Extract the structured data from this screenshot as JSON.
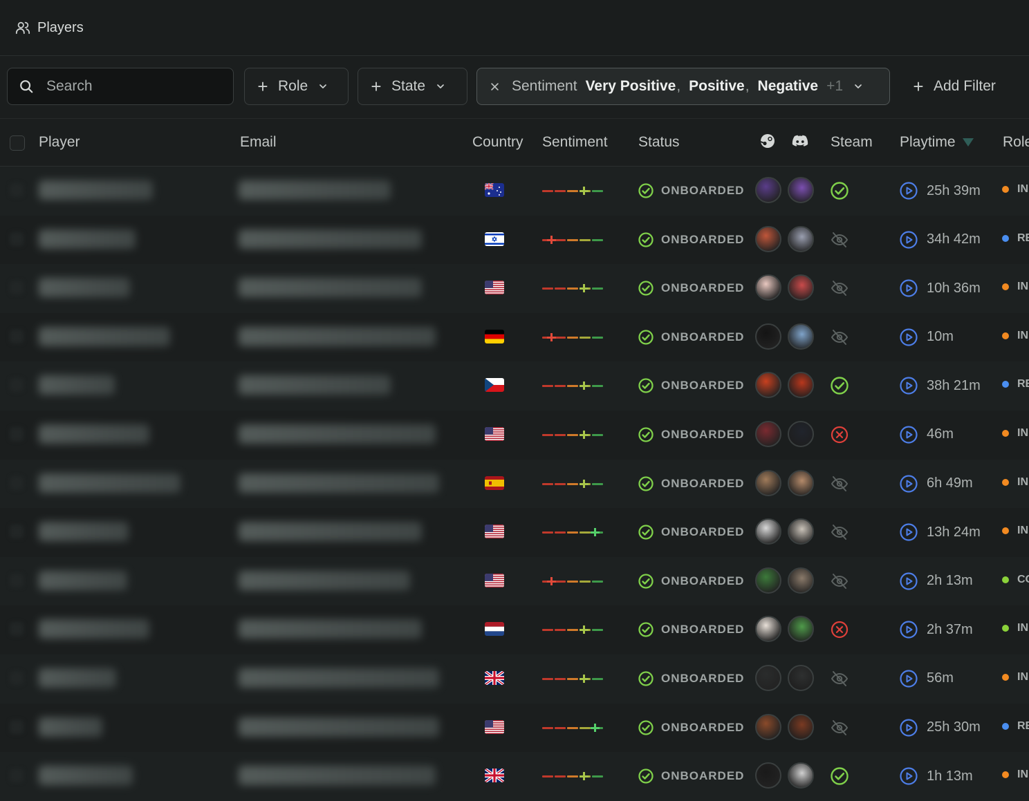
{
  "app": {
    "title": "Players"
  },
  "filters": {
    "search_placeholder": "Search",
    "role_label": "Role",
    "state_label": "State",
    "sentiment_key": "Sentiment",
    "sentiment_values": [
      "Very Positive",
      "Positive",
      "Negative"
    ],
    "sentiment_more": "+1",
    "add_filter_label": "Add Filter"
  },
  "columns": {
    "player": "Player",
    "email": "Email",
    "country": "Country",
    "sentiment": "Sentiment",
    "status": "Status",
    "steam": "Steam",
    "playtime": "Playtime",
    "role": "Role"
  },
  "colors": {
    "onboarded_green": "#7fd04a",
    "play_blue": "#4d7ee8",
    "error_red": "#e0403a",
    "role_orange": "#f28a21",
    "role_blue": "#4a8ef0",
    "role_green": "#8bd23a"
  },
  "rows": [
    {
      "country": "au",
      "sentiment": 4,
      "status": "ONBOARDED",
      "steam": "linked",
      "playtime": "25h 39m",
      "role": "IN",
      "role_color": "orange",
      "av": [
        "#5a3d8a",
        "#7b4fb0"
      ]
    },
    {
      "country": "il",
      "sentiment": 1,
      "status": "ONBOARDED",
      "steam": "hidden",
      "playtime": "34h 42m",
      "role": "RE",
      "role_color": "blue",
      "av": [
        "#c0563a",
        "#9a9fb0"
      ]
    },
    {
      "country": "us",
      "sentiment": 4,
      "status": "ONBOARDED",
      "steam": "hidden",
      "playtime": "10h 36m",
      "role": "IN",
      "role_color": "orange",
      "av": [
        "#e9c8c0",
        "#c94b4b"
      ]
    },
    {
      "country": "de",
      "sentiment": 1,
      "status": "ONBOARDED",
      "steam": "hidden",
      "playtime": "10m",
      "role": "IN",
      "role_color": "orange",
      "av": [
        "#141414",
        "#7fa3c9"
      ]
    },
    {
      "country": "cz",
      "sentiment": 4,
      "status": "ONBOARDED",
      "steam": "linked",
      "playtime": "38h 21m",
      "role": "RE",
      "role_color": "blue",
      "av": [
        "#c8401f",
        "#b8371d"
      ]
    },
    {
      "country": "us",
      "sentiment": 4,
      "status": "ONBOARDED",
      "steam": "error",
      "playtime": "46m",
      "role": "IN",
      "role_color": "orange",
      "av": [
        "#7a2a30",
        "#20242c"
      ]
    },
    {
      "country": "es",
      "sentiment": 4,
      "status": "ONBOARDED",
      "steam": "hidden",
      "playtime": "6h 49m",
      "role": "IN",
      "role_color": "orange",
      "av": [
        "#a07b5a",
        "#b48a6a"
      ]
    },
    {
      "country": "us",
      "sentiment": 5,
      "status": "ONBOARDED",
      "steam": "hidden",
      "playtime": "13h 24m",
      "role": "IN",
      "role_color": "orange",
      "av": [
        "#d8d8d8",
        "#c9c2b8"
      ]
    },
    {
      "country": "us",
      "sentiment": 1,
      "status": "ONBOARDED",
      "steam": "hidden",
      "playtime": "2h 13m",
      "role": "CO",
      "role_color": "green",
      "av": [
        "#3c7a3a",
        "#8a7a6a"
      ]
    },
    {
      "country": "nl",
      "sentiment": 4,
      "status": "ONBOARDED",
      "steam": "error",
      "playtime": "2h 37m",
      "role": "IN",
      "role_color": "green",
      "av": [
        "#e8e0d8",
        "#4f9a4a"
      ]
    },
    {
      "country": "gb",
      "sentiment": 4,
      "status": "ONBOARDED",
      "steam": "hidden",
      "playtime": "56m",
      "role": "IN",
      "role_color": "orange",
      "av": [
        "#2a2c2c",
        "#2e3030"
      ]
    },
    {
      "country": "us",
      "sentiment": 5,
      "status": "ONBOARDED",
      "steam": "hidden",
      "playtime": "25h 30m",
      "role": "RE",
      "role_color": "blue",
      "av": [
        "#8a4a2a",
        "#7a3a22"
      ]
    },
    {
      "country": "gb",
      "sentiment": 4,
      "status": "ONBOARDED",
      "steam": "linked",
      "playtime": "1h 13m",
      "role": "IN",
      "role_color": "orange",
      "av": [
        "#1a1a1a",
        "#d0d0d0"
      ]
    }
  ]
}
